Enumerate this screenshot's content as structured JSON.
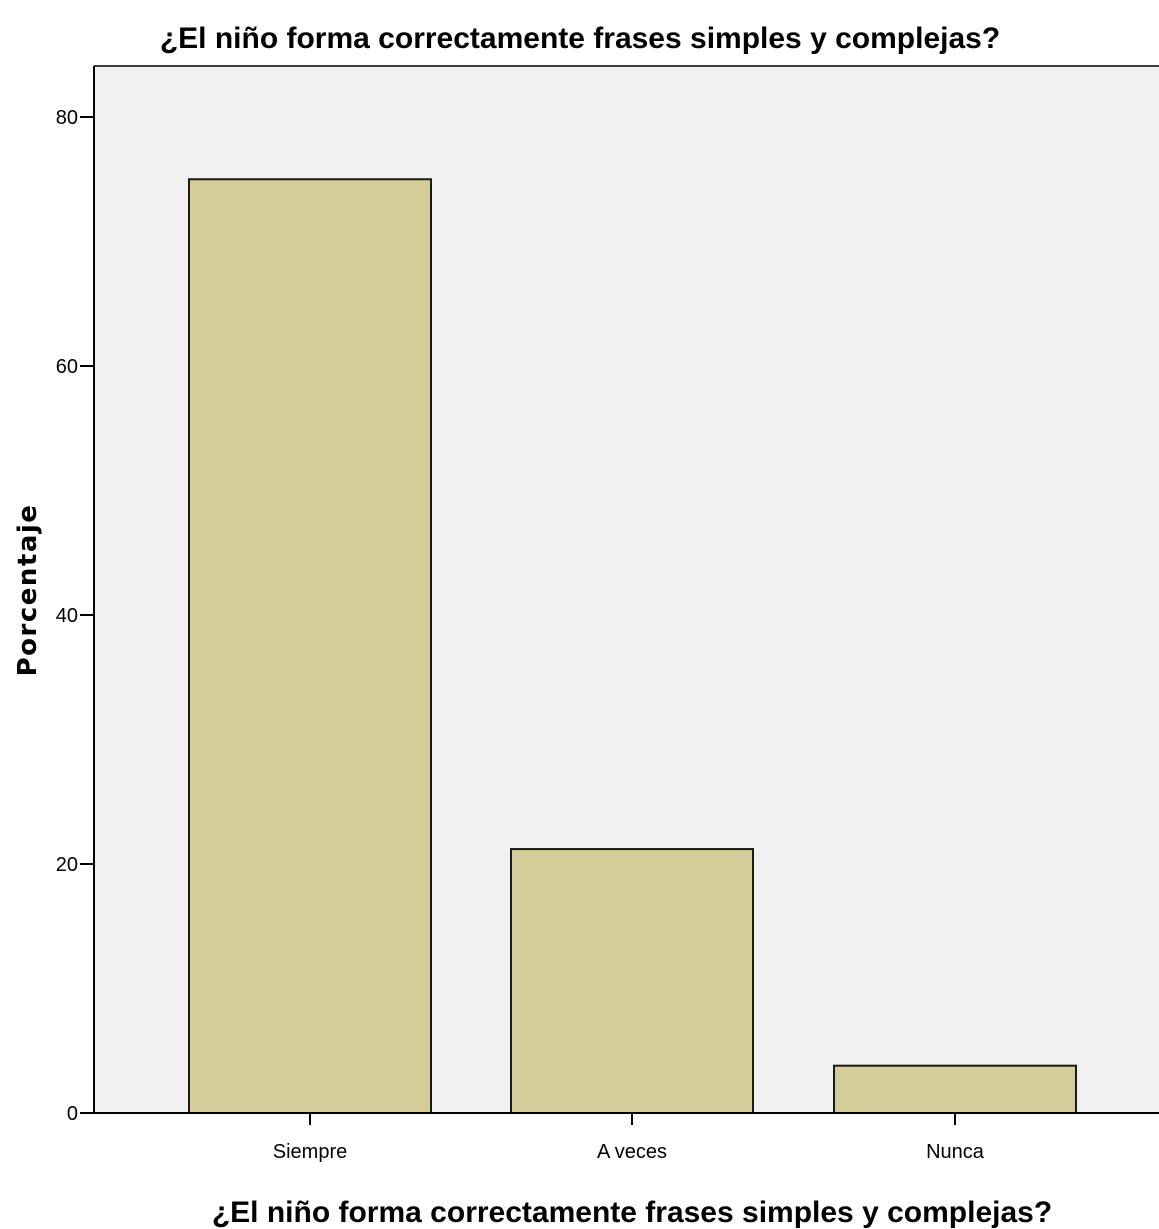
{
  "chart_data": {
    "type": "bar",
    "title": "¿El niño forma correctamente frases simples y complejas?",
    "xlabel": "¿El niño forma correctamente frases simples y complejas?",
    "ylabel": "Porcentaje",
    "categories": [
      "Siempre",
      "A veces",
      "Nunca"
    ],
    "values": [
      75.0,
      21.2,
      3.8
    ],
    "ylim": [
      0,
      84
    ],
    "yticks": [
      0,
      20,
      40,
      60,
      80
    ],
    "grid": false,
    "legend": "none",
    "colors": {
      "bar_fill": "#d3ce97",
      "bar_stroke": "#1a1a1a",
      "plot_background": "#f0f0f0",
      "axis": "#000000"
    }
  }
}
